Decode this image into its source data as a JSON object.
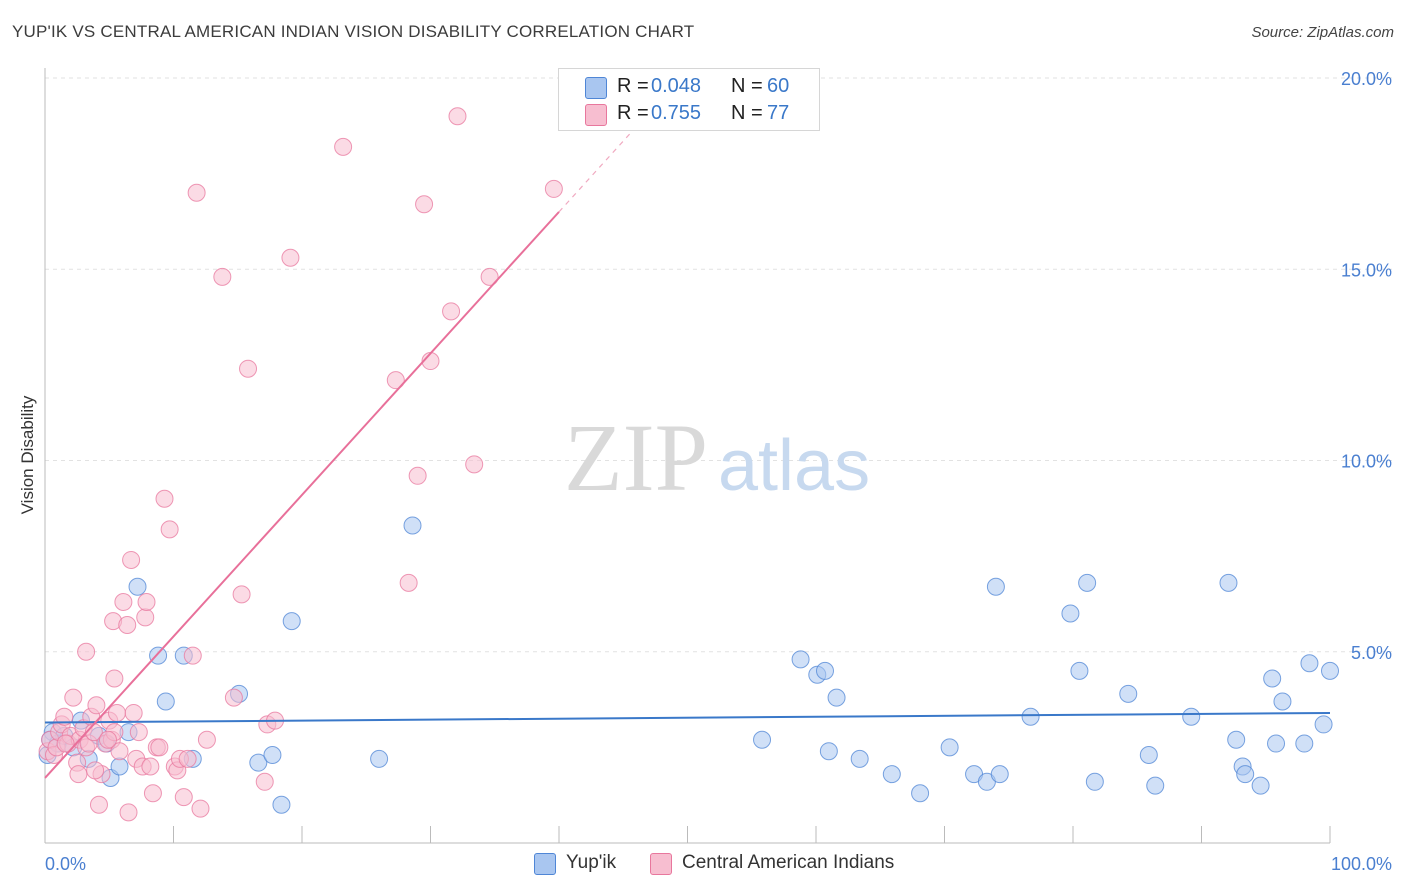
{
  "title": "YUP'IK VS CENTRAL AMERICAN INDIAN VISION DISABILITY CORRELATION CHART",
  "source": "Source: ZipAtlas.com",
  "watermark": {
    "part1": "ZIP",
    "part2": "atlas"
  },
  "colors": {
    "blue": "#4f86d6",
    "blue_fill": "#a9c6f0",
    "blue_line": "#3a78c9",
    "pink": "#e8779d",
    "pink_fill": "#f7bed0",
    "pink_line": "#e8709a",
    "tick_label": "#4a7fd0",
    "grid": "#e2e2e2"
  },
  "legend": {
    "items": [
      {
        "series": "Yup'ik",
        "r_label": "R =",
        "r_value": "0.048",
        "n_label": "N =",
        "n_value": "60"
      },
      {
        "series": "Central American Indians",
        "r_label": "R =",
        "r_value": "0.755",
        "n_label": "N =",
        "n_value": "77"
      }
    ]
  },
  "bottom_legend": [
    "Yup'ik",
    "Central American Indians"
  ],
  "chart_data": {
    "type": "scatter",
    "title": "YUP'IK VS CENTRAL AMERICAN INDIAN VISION DISABILITY CORRELATION CHART",
    "xlabel": "",
    "ylabel": "Vision Disability",
    "xlim": [
      0,
      100
    ],
    "ylim": [
      0,
      20
    ],
    "x_tick_labels": [
      "0.0%",
      "100.0%"
    ],
    "y_ticks": [
      5,
      10,
      15,
      20
    ],
    "y_tick_labels": [
      "5.0%",
      "10.0%",
      "15.0%",
      "20.0%"
    ],
    "grid": true,
    "series": [
      {
        "name": "Yup'ik",
        "color": "#4f86d6",
        "trend": {
          "x0": 0,
          "y0": 3.15,
          "x1": 100,
          "y1": 3.4
        },
        "points": [
          [
            0.2,
            2.3
          ],
          [
            0.6,
            2.9
          ],
          [
            1.0,
            2.6
          ],
          [
            1.5,
            2.8
          ],
          [
            2.2,
            2.5
          ],
          [
            2.8,
            3.2
          ],
          [
            3.4,
            2.2
          ],
          [
            4.2,
            2.8
          ],
          [
            4.8,
            2.6
          ],
          [
            5.1,
            1.7
          ],
          [
            5.8,
            2.0
          ],
          [
            6.5,
            2.9
          ],
          [
            7.2,
            6.7
          ],
          [
            8.8,
            4.9
          ],
          [
            9.4,
            3.7
          ],
          [
            10.8,
            4.9
          ],
          [
            11.5,
            2.2
          ],
          [
            15.1,
            3.9
          ],
          [
            16.6,
            2.1
          ],
          [
            17.7,
            2.3
          ],
          [
            18.4,
            1.0
          ],
          [
            19.2,
            5.8
          ],
          [
            26.0,
            2.2
          ],
          [
            28.6,
            8.3
          ],
          [
            55.8,
            2.7
          ],
          [
            58.8,
            4.8
          ],
          [
            60.1,
            4.4
          ],
          [
            60.7,
            4.5
          ],
          [
            61.0,
            2.4
          ],
          [
            61.6,
            3.8
          ],
          [
            63.4,
            2.2
          ],
          [
            65.9,
            1.8
          ],
          [
            68.1,
            1.3
          ],
          [
            70.4,
            2.5
          ],
          [
            72.3,
            1.8
          ],
          [
            73.3,
            1.6
          ],
          [
            74.0,
            6.7
          ],
          [
            74.3,
            1.8
          ],
          [
            76.7,
            3.3
          ],
          [
            79.8,
            6.0
          ],
          [
            80.5,
            4.5
          ],
          [
            81.1,
            6.8
          ],
          [
            81.7,
            1.6
          ],
          [
            84.3,
            3.9
          ],
          [
            85.9,
            2.3
          ],
          [
            86.4,
            1.5
          ],
          [
            89.2,
            3.3
          ],
          [
            92.1,
            6.8
          ],
          [
            92.7,
            2.7
          ],
          [
            93.2,
            2.0
          ],
          [
            93.4,
            1.8
          ],
          [
            94.6,
            1.5
          ],
          [
            95.5,
            4.3
          ],
          [
            95.8,
            2.6
          ],
          [
            96.3,
            3.7
          ],
          [
            98.0,
            2.6
          ],
          [
            98.4,
            4.7
          ],
          [
            99.5,
            3.1
          ],
          [
            100.0,
            4.5
          ],
          [
            0.4,
            2.7
          ]
        ]
      },
      {
        "name": "Central American Indians",
        "color": "#e8779d",
        "trend": {
          "x0": 0,
          "y0": 1.7,
          "x1": 40,
          "y1": 16.5,
          "dashed_to_x": 50,
          "dashed_to_y": 20.2
        },
        "points": [
          [
            0.2,
            2.4
          ],
          [
            0.4,
            2.7
          ],
          [
            0.7,
            2.3
          ],
          [
            0.9,
            2.5
          ],
          [
            1.1,
            2.9
          ],
          [
            1.3,
            3.1
          ],
          [
            1.5,
            3.3
          ],
          [
            1.8,
            2.6
          ],
          [
            2.0,
            2.8
          ],
          [
            2.2,
            3.8
          ],
          [
            2.5,
            2.1
          ],
          [
            2.7,
            2.7
          ],
          [
            3.0,
            3.0
          ],
          [
            3.2,
            2.5
          ],
          [
            3.4,
            2.6
          ],
          [
            3.6,
            3.3
          ],
          [
            3.8,
            2.9
          ],
          [
            4.0,
            3.6
          ],
          [
            4.2,
            1.0
          ],
          [
            4.4,
            1.8
          ],
          [
            4.7,
            2.6
          ],
          [
            5.0,
            3.2
          ],
          [
            5.2,
            2.7
          ],
          [
            5.4,
            2.9
          ],
          [
            5.6,
            3.4
          ],
          [
            3.2,
            5.0
          ],
          [
            5.3,
            5.8
          ],
          [
            5.4,
            4.3
          ],
          [
            5.8,
            2.4
          ],
          [
            6.1,
            6.3
          ],
          [
            6.4,
            5.7
          ],
          [
            6.5,
            0.8
          ],
          [
            6.7,
            7.4
          ],
          [
            6.9,
            3.4
          ],
          [
            7.1,
            2.2
          ],
          [
            7.3,
            2.9
          ],
          [
            7.6,
            2.0
          ],
          [
            7.8,
            5.9
          ],
          [
            7.9,
            6.3
          ],
          [
            8.2,
            2.0
          ],
          [
            8.4,
            1.3
          ],
          [
            8.7,
            2.5
          ],
          [
            8.9,
            2.5
          ],
          [
            9.3,
            9.0
          ],
          [
            9.7,
            8.2
          ],
          [
            10.1,
            2.0
          ],
          [
            10.3,
            1.9
          ],
          [
            10.5,
            2.2
          ],
          [
            10.8,
            1.2
          ],
          [
            11.1,
            2.2
          ],
          [
            11.5,
            4.9
          ],
          [
            11.8,
            17.0
          ],
          [
            12.1,
            0.9
          ],
          [
            12.6,
            2.7
          ],
          [
            13.8,
            14.8
          ],
          [
            14.7,
            3.8
          ],
          [
            15.3,
            6.5
          ],
          [
            15.8,
            12.4
          ],
          [
            17.1,
            1.6
          ],
          [
            17.3,
            3.1
          ],
          [
            17.9,
            3.2
          ],
          [
            19.1,
            15.3
          ],
          [
            23.2,
            18.2
          ],
          [
            27.3,
            12.1
          ],
          [
            28.3,
            6.8
          ],
          [
            29.0,
            9.6
          ],
          [
            29.5,
            16.7
          ],
          [
            30.0,
            12.6
          ],
          [
            31.6,
            13.9
          ],
          [
            32.1,
            19.0
          ],
          [
            33.4,
            9.9
          ],
          [
            34.6,
            14.8
          ],
          [
            39.6,
            17.1
          ],
          [
            2.6,
            1.8
          ],
          [
            3.9,
            1.9
          ],
          [
            4.9,
            2.7
          ],
          [
            1.6,
            2.6
          ]
        ]
      }
    ]
  }
}
